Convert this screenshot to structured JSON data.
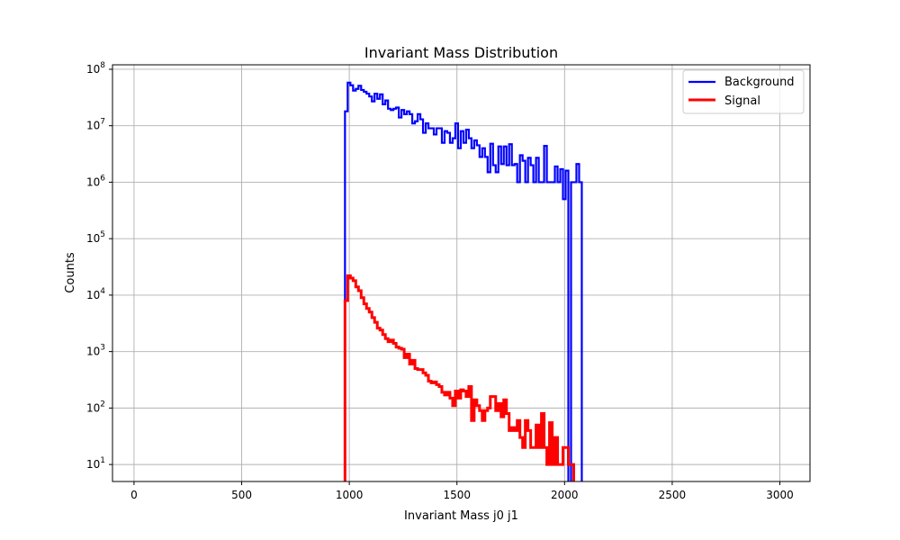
{
  "chart_data": {
    "type": "histogram-step",
    "title": "Invariant Mass Distribution",
    "xlabel": "Invariant Mass j0 j1",
    "ylabel": "Counts",
    "xlim": [
      -100,
      3140
    ],
    "ylim": [
      5,
      120000000
    ],
    "yscale": "log",
    "grid": true,
    "legend_placement": "top-right",
    "x_ticks": [
      0,
      500,
      1000,
      1500,
      2000,
      2500,
      3000
    ],
    "y_ticks": [
      10,
      100,
      1000,
      10000,
      100000,
      1000000,
      10000000,
      100000000
    ],
    "y_tick_labels": [
      {
        "base": "10",
        "exp": "1"
      },
      {
        "base": "10",
        "exp": "2"
      },
      {
        "base": "10",
        "exp": "3"
      },
      {
        "base": "10",
        "exp": "4"
      },
      {
        "base": "10",
        "exp": "5"
      },
      {
        "base": "10",
        "exp": "6"
      },
      {
        "base": "10",
        "exp": "7"
      },
      {
        "base": "10",
        "exp": "8"
      }
    ],
    "bin_edges_start": 980,
    "bin_width": 12.5,
    "series": [
      {
        "name": "Background",
        "color": "#0000ff",
        "values": [
          18000000,
          58000000,
          52000000,
          42000000,
          45000000,
          51000000,
          43000000,
          40000000,
          37000000,
          33000000,
          27000000,
          37000000,
          30000000,
          36000000,
          24000000,
          28000000,
          20000000,
          19000000,
          20000000,
          21000000,
          14000000,
          19000000,
          16000000,
          18000000,
          16000000,
          11000000,
          12000000,
          16000000,
          13000000,
          7500000,
          11000000,
          9000000,
          9000000,
          7000000,
          9000000,
          9000000,
          5000000,
          8000000,
          7500000,
          5000000,
          6000000,
          11000000,
          4000000,
          8000000,
          5000000,
          8500000,
          6000000,
          4000000,
          5500000,
          4500000,
          2800000,
          4000000,
          2800000,
          1500000,
          4800000,
          2000000,
          1500000,
          4300000,
          2100000,
          4300000,
          2000000,
          4700000,
          2000000,
          2100000,
          1000000,
          3000000,
          2400000,
          1000000,
          2700000,
          2000000,
          1000000,
          2700000,
          1000000,
          1000000,
          4400000,
          1000000,
          1000000,
          1000000,
          1900000,
          1000000,
          1700000,
          500000,
          1600000,
          0,
          1000000,
          1000000,
          2100000,
          1000000,
          0,
          0,
          0,
          0,
          0,
          0,
          0,
          0,
          0,
          0,
          0,
          0,
          0,
          0,
          0,
          0,
          0,
          0,
          0,
          0,
          0,
          0,
          0,
          0,
          0,
          0,
          0,
          0,
          0,
          0,
          0,
          0,
          0,
          0,
          0,
          0,
          0,
          0,
          0,
          0,
          0,
          0,
          0,
          0,
          0,
          0,
          0,
          0,
          0,
          0,
          0,
          0,
          0,
          0,
          0,
          0,
          0,
          0,
          0,
          0,
          0,
          0,
          0,
          0,
          0,
          0,
          0,
          0,
          0,
          0,
          0,
          0,
          0,
          0
        ]
      },
      {
        "name": "Signal",
        "color": "#ff0000",
        "values": [
          8000,
          22000,
          20000,
          18000,
          14000,
          12000,
          9000,
          7000,
          5800,
          5000,
          4000,
          3300,
          2600,
          2400,
          2000,
          1700,
          1500,
          1600,
          1400,
          1200,
          1150,
          1100,
          780,
          900,
          600,
          700,
          500,
          480,
          480,
          420,
          380,
          300,
          280,
          290,
          260,
          240,
          190,
          170,
          190,
          150,
          110,
          200,
          150,
          210,
          200,
          160,
          240,
          60,
          140,
          110,
          90,
          60,
          90,
          100,
          160,
          160,
          90,
          120,
          70,
          140,
          80,
          40,
          45,
          40,
          60,
          30,
          20,
          60,
          40,
          20,
          20,
          50,
          20,
          80,
          20,
          10,
          55,
          10,
          30,
          10,
          10,
          20,
          20,
          10,
          10,
          5,
          5,
          0,
          0,
          0,
          0,
          0,
          0,
          0,
          0,
          0,
          0,
          0,
          0,
          0,
          0,
          0,
          0,
          0,
          0,
          0,
          0,
          0,
          0,
          0,
          0,
          0,
          0,
          0,
          0,
          0,
          0,
          0,
          0,
          0,
          0,
          0,
          0,
          0,
          0,
          0,
          0,
          0,
          0,
          0,
          0,
          0,
          0,
          0,
          0,
          0,
          0,
          0,
          0,
          0,
          0,
          0,
          0,
          0,
          0,
          0,
          0,
          0,
          0,
          0,
          0,
          0,
          0,
          0,
          0,
          0,
          0,
          0,
          0,
          0,
          0,
          0,
          0
        ]
      }
    ]
  }
}
